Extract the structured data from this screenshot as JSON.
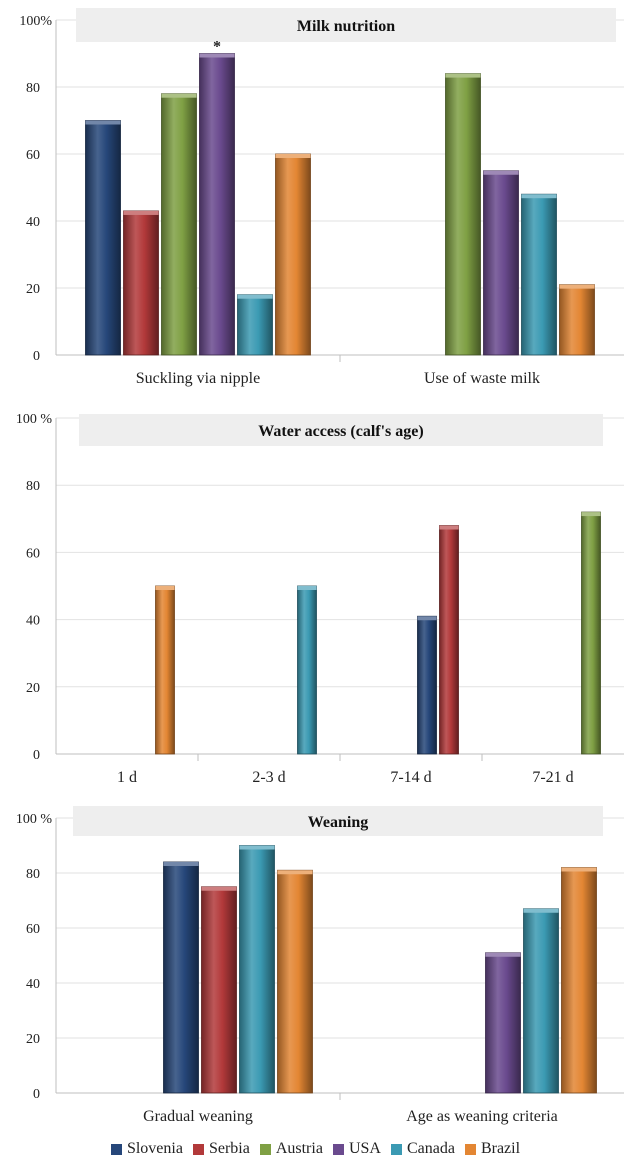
{
  "colors": {
    "Slovenia": "#26477a",
    "Serbia": "#b2393a",
    "Austria": "#7fa044",
    "USA": "#6a4a8e",
    "Canada": "#3b9ab3",
    "Brazil": "#e38633"
  },
  "legend": [
    "Slovenia",
    "Serbia",
    "Austria",
    "USA",
    "Canada",
    "Brazil"
  ],
  "chart_data": [
    {
      "type": "bar",
      "title": "Milk nutrition",
      "y_top_label": "100%",
      "yticks": [
        "0",
        "20",
        "40",
        "60",
        "80"
      ],
      "ylim": [
        0,
        100
      ],
      "categories": [
        "Suckling via nipple",
        "Use of waste milk"
      ],
      "annotations": [
        {
          "category": "Suckling via nipple",
          "series": "USA",
          "text": "*"
        }
      ],
      "series": [
        {
          "name": "Slovenia",
          "values": [
            70,
            null
          ]
        },
        {
          "name": "Serbia",
          "values": [
            43,
            null
          ]
        },
        {
          "name": "Austria",
          "values": [
            78,
            84
          ]
        },
        {
          "name": "USA",
          "values": [
            90,
            55
          ]
        },
        {
          "name": "Canada",
          "values": [
            18,
            48
          ]
        },
        {
          "name": "Brazil",
          "values": [
            60,
            21
          ]
        }
      ]
    },
    {
      "type": "bar",
      "title": "Water access (calf's age)",
      "y_top_label": "100 %",
      "yticks": [
        "0",
        "20",
        "40",
        "60",
        "80"
      ],
      "ylim": [
        0,
        100
      ],
      "categories": [
        "1 d",
        "2-3 d",
        "7-14 d",
        "7-21 d"
      ],
      "annotations": [],
      "series": [
        {
          "name": "Slovenia",
          "values": [
            null,
            null,
            41,
            null
          ]
        },
        {
          "name": "Serbia",
          "values": [
            null,
            null,
            68,
            null
          ]
        },
        {
          "name": "Austria",
          "values": [
            null,
            null,
            null,
            72
          ]
        },
        {
          "name": "USA",
          "values": [
            null,
            null,
            null,
            null
          ]
        },
        {
          "name": "Canada",
          "values": [
            null,
            50,
            null,
            null
          ]
        },
        {
          "name": "Brazil",
          "values": [
            50,
            null,
            null,
            null
          ]
        }
      ]
    },
    {
      "type": "bar",
      "title": "Weaning",
      "y_top_label": "100 %",
      "yticks": [
        "0",
        "20",
        "40",
        "60",
        "80"
      ],
      "ylim": [
        0,
        100
      ],
      "categories": [
        "Gradual weaning",
        "Age as weaning criteria"
      ],
      "annotations": [],
      "series": [
        {
          "name": "Slovenia",
          "values": [
            84,
            null
          ]
        },
        {
          "name": "Serbia",
          "values": [
            75,
            null
          ]
        },
        {
          "name": "Austria",
          "values": [
            null,
            null
          ]
        },
        {
          "name": "USA",
          "values": [
            null,
            51
          ]
        },
        {
          "name": "Canada",
          "values": [
            90,
            67
          ]
        },
        {
          "name": "Brazil",
          "values": [
            81,
            82
          ]
        }
      ]
    }
  ]
}
